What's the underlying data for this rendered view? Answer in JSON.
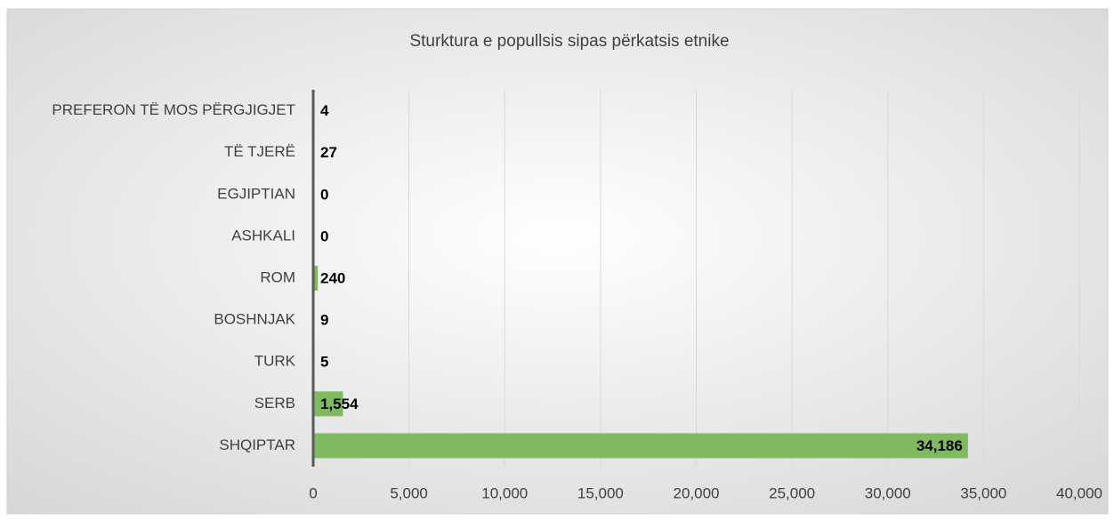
{
  "chart_data": {
    "type": "hbar",
    "title": "Sturktura e popullsis sipas përkatsis etnike",
    "categories": [
      "SHQIPTAR",
      "SERB",
      "TURK",
      "BOSHNJAK",
      "ROM",
      "ASHKALI",
      "EGJIPTIAN",
      "TË TJERË",
      "PREFERON TË MOS PËRGJIGJET"
    ],
    "values": [
      34186,
      1554,
      5,
      9,
      240,
      0,
      0,
      27,
      4
    ],
    "value_labels": [
      "34,186",
      "1,554",
      "5",
      "9",
      "240",
      "0",
      "0",
      "27",
      "4"
    ],
    "color": "#7fba60",
    "xlim": [
      0,
      40000
    ],
    "xticks": [
      0,
      {
        "value": 5000,
        "label": "5,000"
      },
      {
        "value": 10000,
        "label": "10,000"
      },
      {
        "value": 15000,
        "label": "15,000"
      },
      {
        "value": 20000,
        "label": "20,000"
      },
      {
        "value": 25000,
        "label": "25,000"
      },
      {
        "value": 30000,
        "label": "30,000"
      },
      {
        "value": 35000,
        "label": "35,000"
      },
      {
        "value": 40000,
        "label": "40,000"
      }
    ],
    "grid": true
  }
}
